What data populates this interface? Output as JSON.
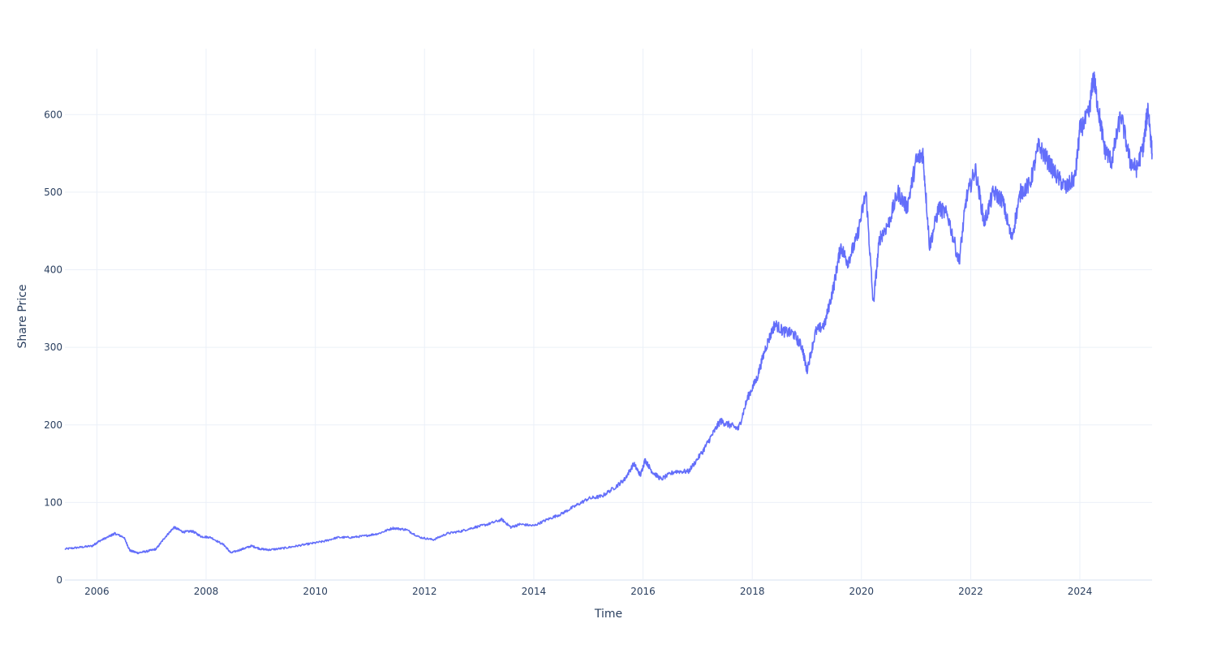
{
  "chart_data": {
    "type": "line",
    "title": "",
    "xlabel": "Time",
    "ylabel": "Share Price",
    "x_range": [
      "2005-06-01",
      "2025-04-28"
    ],
    "ylim": [
      0,
      685
    ],
    "grid": true,
    "legend": "none",
    "x_ticks": [
      "2006",
      "2008",
      "2010",
      "2012",
      "2014",
      "2016",
      "2018",
      "2020",
      "2022",
      "2024"
    ],
    "y_ticks": [
      0,
      100,
      200,
      300,
      400,
      500,
      600
    ],
    "series": [
      {
        "color": "#636efa",
        "points": [
          [
            "2005-06-01",
            40
          ],
          [
            "2005-09-01",
            42
          ],
          [
            "2005-12-01",
            44
          ],
          [
            "2006-01-15",
            50
          ],
          [
            "2006-04-01",
            57
          ],
          [
            "2006-05-01",
            60
          ],
          [
            "2006-07-01",
            55
          ],
          [
            "2006-08-10",
            38
          ],
          [
            "2006-10-01",
            35
          ],
          [
            "2006-12-01",
            37
          ],
          [
            "2007-02-01",
            40
          ],
          [
            "2007-04-01",
            55
          ],
          [
            "2007-06-01",
            68
          ],
          [
            "2007-08-01",
            62
          ],
          [
            "2007-10-01",
            63
          ],
          [
            "2007-12-01",
            56
          ],
          [
            "2008-02-01",
            55
          ],
          [
            "2008-05-01",
            45
          ],
          [
            "2008-06-15",
            35
          ],
          [
            "2008-09-01",
            40
          ],
          [
            "2008-11-01",
            44
          ],
          [
            "2009-01-01",
            40
          ],
          [
            "2009-03-01",
            39
          ],
          [
            "2009-06-01",
            41
          ],
          [
            "2009-09-01",
            44
          ],
          [
            "2009-12-01",
            47
          ],
          [
            "2010-03-01",
            50
          ],
          [
            "2010-06-01",
            55
          ],
          [
            "2010-09-01",
            55
          ],
          [
            "2010-12-01",
            57
          ],
          [
            "2011-03-01",
            60
          ],
          [
            "2011-06-01",
            67
          ],
          [
            "2011-09-01",
            65
          ],
          [
            "2011-12-01",
            55
          ],
          [
            "2012-03-01",
            52
          ],
          [
            "2012-06-01",
            60
          ],
          [
            "2012-09-01",
            63
          ],
          [
            "2012-12-01",
            68
          ],
          [
            "2013-03-01",
            72
          ],
          [
            "2013-06-01",
            78
          ],
          [
            "2013-08-01",
            68
          ],
          [
            "2013-10-01",
            72
          ],
          [
            "2014-01-01",
            70
          ],
          [
            "2014-04-01",
            78
          ],
          [
            "2014-07-01",
            85
          ],
          [
            "2014-10-01",
            95
          ],
          [
            "2015-01-01",
            105
          ],
          [
            "2015-04-01",
            108
          ],
          [
            "2015-07-01",
            120
          ],
          [
            "2015-09-01",
            130
          ],
          [
            "2015-11-01",
            150
          ],
          [
            "2015-12-15",
            135
          ],
          [
            "2016-01-15",
            155
          ],
          [
            "2016-03-01",
            140
          ],
          [
            "2016-05-01",
            130
          ],
          [
            "2016-08-01",
            140
          ],
          [
            "2016-11-01",
            140
          ],
          [
            "2017-02-01",
            165
          ],
          [
            "2017-04-01",
            185
          ],
          [
            "2017-06-01",
            205
          ],
          [
            "2017-08-01",
            200
          ],
          [
            "2017-10-01",
            195
          ],
          [
            "2017-12-01",
            235
          ],
          [
            "2018-02-01",
            260
          ],
          [
            "2018-04-01",
            300
          ],
          [
            "2018-06-01",
            330
          ],
          [
            "2018-08-01",
            320
          ],
          [
            "2018-10-01",
            318
          ],
          [
            "2018-12-01",
            300
          ],
          [
            "2019-01-01",
            270
          ],
          [
            "2019-03-01",
            320
          ],
          [
            "2019-05-01",
            330
          ],
          [
            "2019-07-01",
            380
          ],
          [
            "2019-08-15",
            430
          ],
          [
            "2019-10-01",
            410
          ],
          [
            "2019-12-01",
            440
          ],
          [
            "2020-02-01",
            500
          ],
          [
            "2020-03-20",
            355
          ],
          [
            "2020-05-01",
            440
          ],
          [
            "2020-07-01",
            460
          ],
          [
            "2020-09-01",
            500
          ],
          [
            "2020-11-01",
            480
          ],
          [
            "2021-01-01",
            540
          ],
          [
            "2021-02-15",
            550
          ],
          [
            "2021-04-01",
            430
          ],
          [
            "2021-06-01",
            480
          ],
          [
            "2021-08-01",
            470
          ],
          [
            "2021-10-15",
            410
          ],
          [
            "2021-12-01",
            490
          ],
          [
            "2022-02-01",
            530
          ],
          [
            "2022-04-01",
            460
          ],
          [
            "2022-06-01",
            500
          ],
          [
            "2022-08-01",
            490
          ],
          [
            "2022-10-01",
            440
          ],
          [
            "2022-12-01",
            500
          ],
          [
            "2023-02-01",
            510
          ],
          [
            "2023-04-01",
            560
          ],
          [
            "2023-06-01",
            540
          ],
          [
            "2023-08-01",
            520
          ],
          [
            "2023-10-01",
            505
          ],
          [
            "2023-12-01",
            520
          ],
          [
            "2024-01-01",
            580
          ],
          [
            "2024-03-01",
            600
          ],
          [
            "2024-04-01",
            650
          ],
          [
            "2024-05-01",
            610
          ],
          [
            "2024-06-15",
            555
          ],
          [
            "2024-08-01",
            540
          ],
          [
            "2024-10-01",
            600
          ],
          [
            "2024-12-01",
            540
          ],
          [
            "2025-01-15",
            530
          ],
          [
            "2025-03-01",
            560
          ],
          [
            "2025-04-01",
            610
          ],
          [
            "2025-04-28",
            550
          ]
        ]
      }
    ]
  }
}
